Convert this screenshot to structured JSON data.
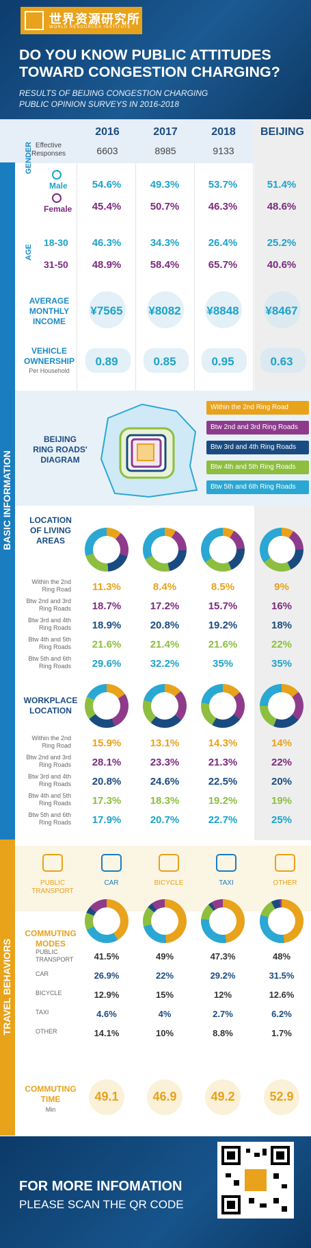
{
  "header": {
    "logo_cn": "世界资源研究所",
    "logo_en": "WORLD RESOURCES INSTITUTE",
    "title": "DO YOU KNOW PUBLIC ATTITUDES TOWARD CONGESTION CHARGING?",
    "subtitle_1": "RESULTS OF BEIJING CONGESTION CHARGING",
    "subtitle_2": "PUBLIC OPINION SURVEYS IN 2016-2018"
  },
  "columns": [
    "2016",
    "2017",
    "2018",
    "BEIJING"
  ],
  "effective": {
    "label": "Effective Responses",
    "values": [
      "6603",
      "8985",
      "9133"
    ]
  },
  "sections": {
    "basic": "BASIC INFORMATION",
    "travel": "TRAVEL BEHAVIORS"
  },
  "gender": {
    "label": "GENDER",
    "male": "Male",
    "female": "Female",
    "male_values": [
      "54.6%",
      "49.3%",
      "53.7%",
      "51.4%"
    ],
    "female_values": [
      "45.4%",
      "50.7%",
      "46.3%",
      "48.6%"
    ]
  },
  "age": {
    "label": "AGE",
    "a1": "18-30",
    "a2": "31-50",
    "a1_values": [
      "46.3%",
      "34.3%",
      "26.4%",
      "25.2%"
    ],
    "a2_values": [
      "48.9%",
      "58.4%",
      "65.7%",
      "40.6%"
    ]
  },
  "income": {
    "label": "AVERAGE MONTHLY INCOME",
    "values": [
      "¥7565",
      "¥8082",
      "¥8848",
      "¥8467"
    ]
  },
  "vehicle": {
    "label": "VEHICLE OWNERSHIP",
    "sublabel": "Per Household",
    "values": [
      "0.89",
      "0.85",
      "0.95",
      "0.63"
    ]
  },
  "ring_diagram": {
    "label": "BEIJING RING ROADS' DIAGRAM",
    "legend": [
      "Within the 2nd Ring Road",
      "Btw 2nd and 3rd Ring Roads",
      "Btw 3rd and 4th Ring Roads",
      "Btw 4th and 5th Ring Roads",
      "Btw 5th and 6th Ring Roads"
    ],
    "colors": [
      "#e8a21b",
      "#8e3b8c",
      "#1a4b80",
      "#8dbe3f",
      "#2aa7d2"
    ]
  },
  "living": {
    "label": "LOCATION OF LIVING AREAS",
    "rows": [
      "Within the 2nd Ring Road",
      "Btw 2nd and 3rd Ring Roads",
      "Btw 3rd and 4th Ring Roads",
      "Btw 4th and 5th Ring Roads",
      "Btw 5th and 6th Ring Roads"
    ],
    "values": [
      [
        "11.3%",
        "18.7%",
        "18.9%",
        "21.6%",
        "29.6%"
      ],
      [
        "8.4%",
        "17.2%",
        "20.8%",
        "21.4%",
        "32.2%"
      ],
      [
        "8.5%",
        "15.7%",
        "19.2%",
        "21.6%",
        "35%"
      ],
      [
        "9%",
        "16%",
        "18%",
        "22%",
        "35%"
      ]
    ],
    "shares": [
      [
        11.3,
        18.7,
        18.9,
        21.6,
        29.6
      ],
      [
        8.4,
        17.2,
        20.8,
        21.4,
        32.2
      ],
      [
        8.5,
        15.7,
        19.2,
        21.6,
        35
      ],
      [
        9,
        16,
        18,
        22,
        35
      ]
    ]
  },
  "workplace": {
    "label": "WORKPLACE LOCATION",
    "rows": [
      "Within the 2nd Ring Road",
      "Btw 2nd and 3rd Ring Roads",
      "Btw 3rd and 4th Ring Roads",
      "Btw 4th and 5th Ring Roads",
      "Btw 5th and 6th Ring Roads"
    ],
    "values": [
      [
        "15.9%",
        "28.1%",
        "20.8%",
        "17.3%",
        "17.9%"
      ],
      [
        "13.1%",
        "23.3%",
        "24.6%",
        "18.3%",
        "20.7%"
      ],
      [
        "14.3%",
        "21.3%",
        "22.5%",
        "19.2%",
        "22.7%"
      ],
      [
        "14%",
        "22%",
        "20%",
        "19%",
        "25%"
      ]
    ],
    "shares": [
      [
        15.9,
        28.1,
        20.8,
        17.3,
        17.9
      ],
      [
        13.1,
        23.3,
        24.6,
        18.3,
        20.7
      ],
      [
        14.3,
        21.3,
        22.5,
        19.2,
        22.7
      ],
      [
        14,
        22,
        20,
        19,
        25
      ]
    ]
  },
  "transport_modes": [
    "PUBLIC TRANSPORT",
    "CAR",
    "BICYCLE",
    "TAXI",
    "OTHER"
  ],
  "transport_icons": [
    "bus-icon",
    "car-icon",
    "bicycle-icon",
    "taxi-icon",
    "more-icon"
  ],
  "commuting": {
    "label": "COMMUTING MODES",
    "rows": [
      "PUBLIC TRANSPORT",
      "CAR",
      "BICYCLE",
      "TAXI",
      "OTHER"
    ],
    "colors": [
      "#e8a21b",
      "#2aa7d2",
      "#8dbe3f",
      "#1a4b80",
      "#8e3b8c"
    ],
    "values": [
      [
        "41.5%",
        "26.9%",
        "12.9%",
        "4.6%",
        "14.1%"
      ],
      [
        "49%",
        "22%",
        "15%",
        "4%",
        "10%"
      ],
      [
        "47.3%",
        "29.2%",
        "12%",
        "2.7%",
        "8.8%"
      ],
      [
        "48%",
        "31.5%",
        "12.6%",
        "6.2%",
        "1.7%"
      ]
    ],
    "shares": [
      [
        41.5,
        26.9,
        12.9,
        4.6,
        14.1
      ],
      [
        49,
        22,
        15,
        4,
        10
      ],
      [
        47.3,
        29.2,
        12,
        2.7,
        8.8
      ],
      [
        48,
        31.5,
        12.6,
        6.2,
        1.7
      ]
    ]
  },
  "commute_time": {
    "label": "COMMUTING TIME",
    "unit": "Min",
    "values": [
      "49.1",
      "46.9",
      "49.2",
      "52.9"
    ]
  },
  "footer": {
    "line1": "FOR MORE INFOMATION",
    "line2": "PLEASE SCAN THE QR CODE"
  }
}
